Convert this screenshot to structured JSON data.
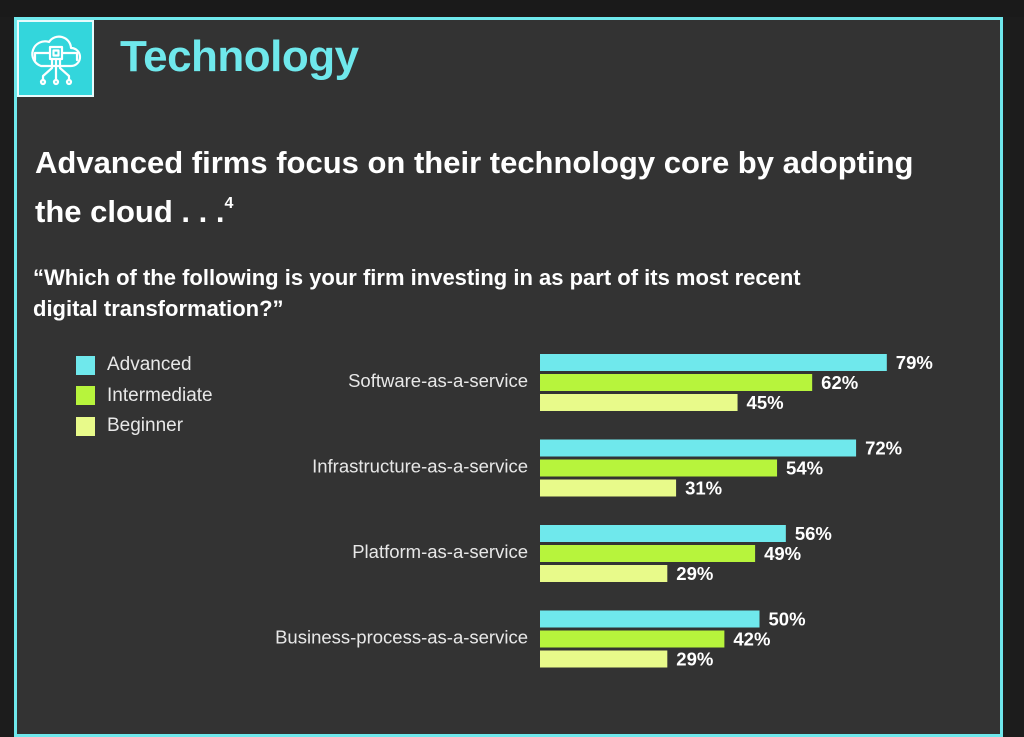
{
  "header": {
    "section_title": "Technology",
    "icon": "cloud-circuit-icon"
  },
  "headline": {
    "text": "Advanced firms focus on their technology core by adopting the cloud . . .",
    "footnote": "4"
  },
  "question": "“Which of the following is your firm investing in as part of its most recent digital transformation?”",
  "colors": {
    "advanced": "#6fe8ec",
    "intermediate": "#b7f43c",
    "beginner": "#e8fa8a",
    "accent": "#6fe8ec"
  },
  "chart_data": {
    "type": "bar",
    "orientation": "horizontal",
    "categories": [
      "Software-as-a-service",
      "Infrastructure-as-a-service",
      "Platform-as-a-service",
      "Business-process-as-a-service"
    ],
    "series": [
      {
        "name": "Advanced",
        "values": [
          79,
          72,
          56,
          50
        ]
      },
      {
        "name": "Intermediate",
        "values": [
          62,
          54,
          49,
          42
        ]
      },
      {
        "name": "Beginner",
        "values": [
          45,
          31,
          29,
          29
        ]
      }
    ],
    "value_suffix": "%",
    "legend_position": "top-left",
    "grid": false
  }
}
